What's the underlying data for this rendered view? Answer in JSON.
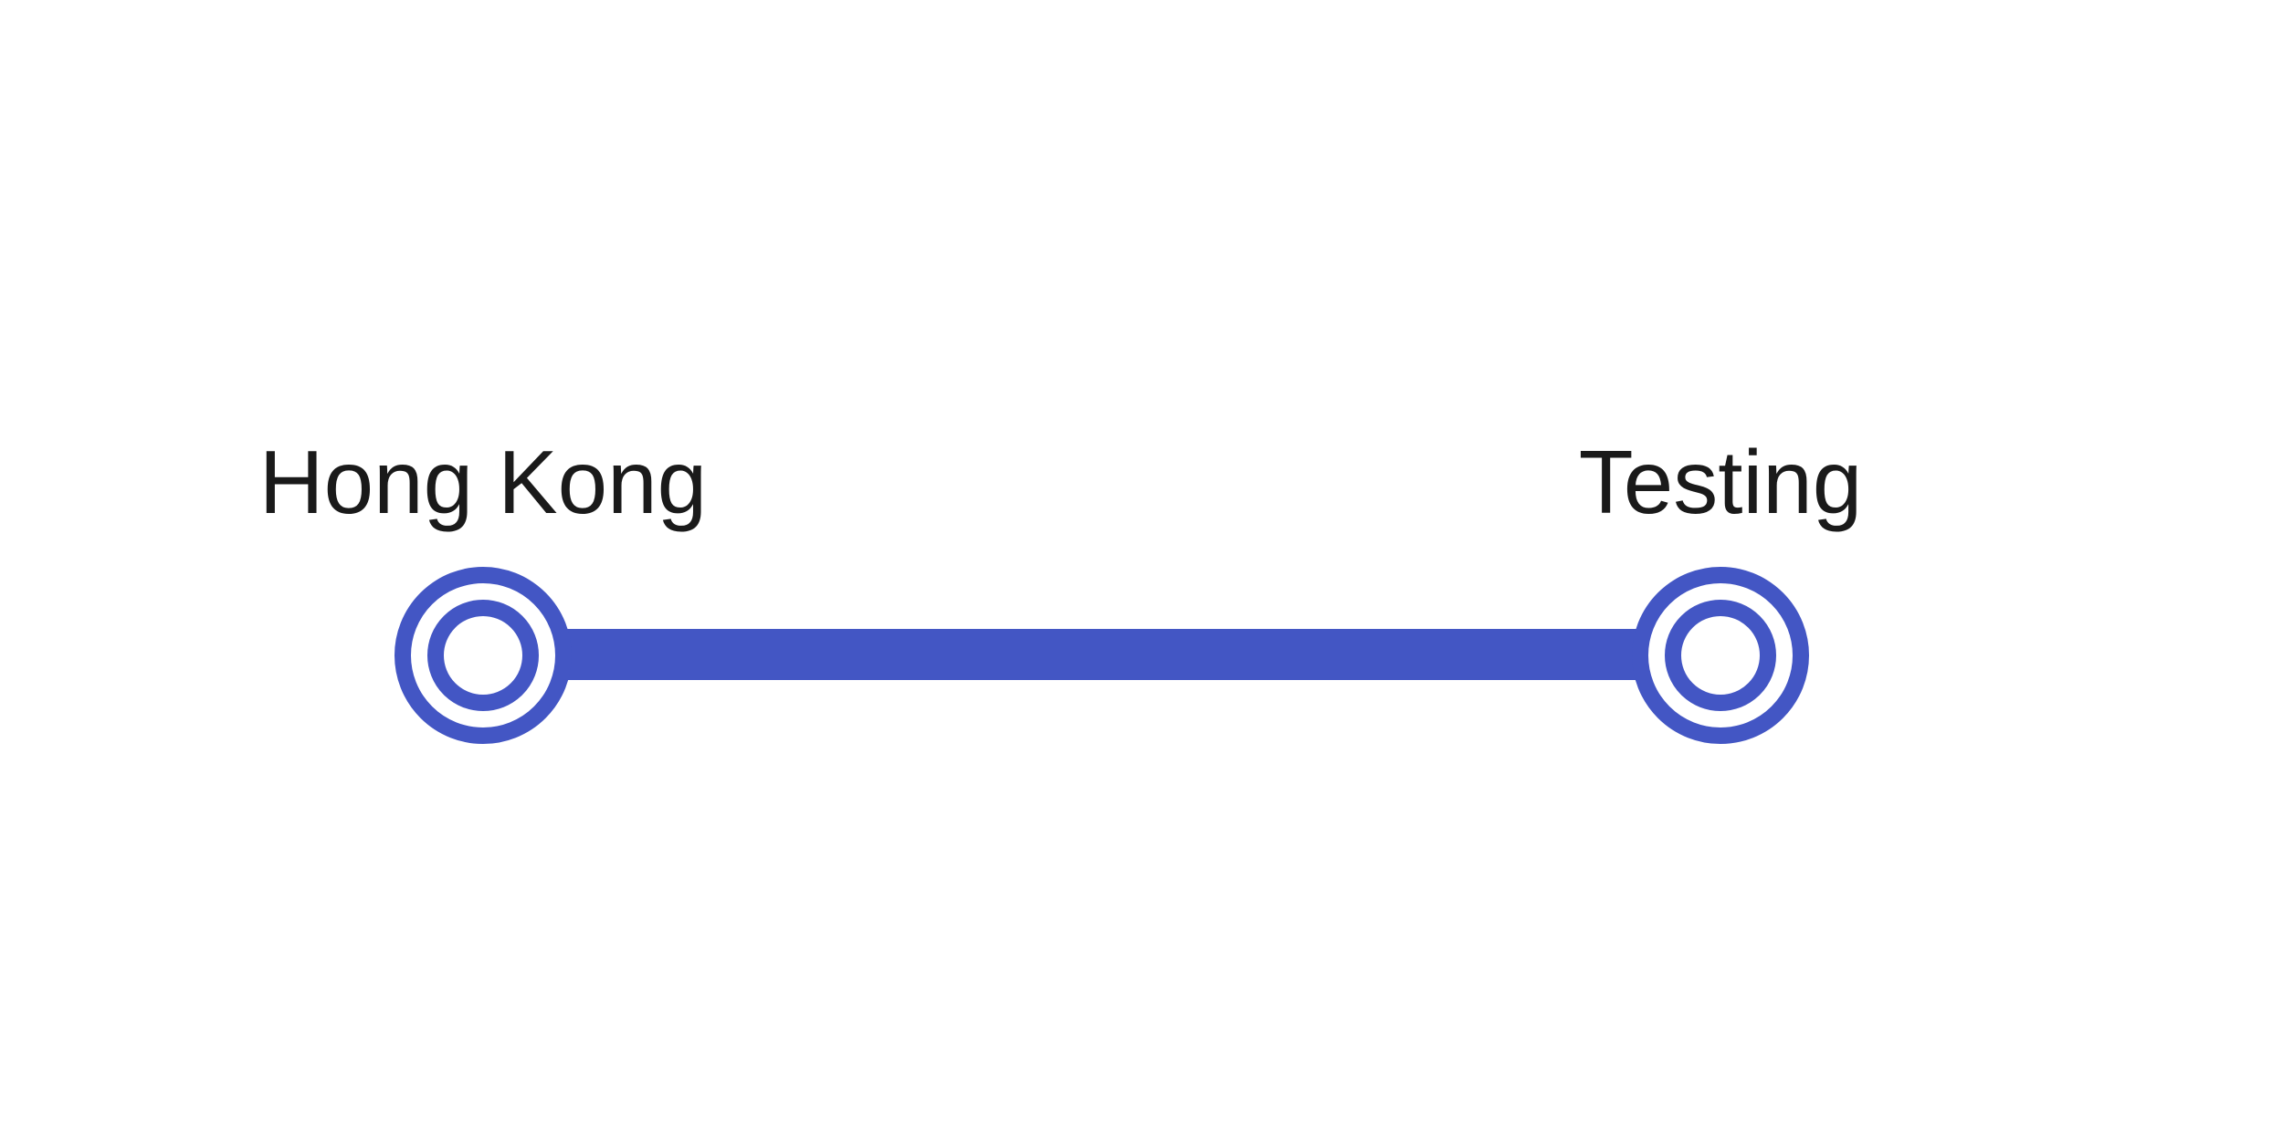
{
  "route": {
    "line_color": "#4356c4",
    "label_color": "#1a1a1a",
    "stations": [
      {
        "name": "Hong Kong",
        "icon": "interchange-station-icon"
      },
      {
        "name": "Testing",
        "icon": "interchange-station-icon"
      }
    ]
  }
}
